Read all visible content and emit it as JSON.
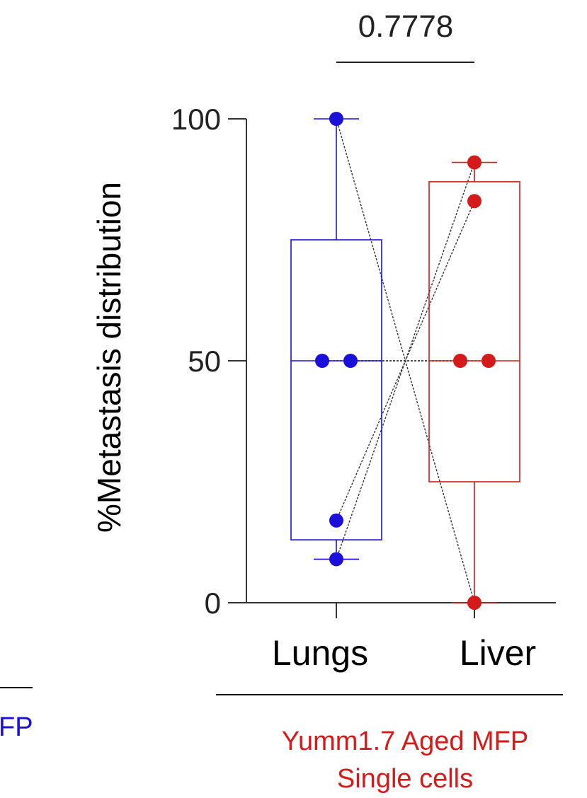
{
  "colors": {
    "lungs": "#1a10d8",
    "liver": "#d41a1a",
    "axis": "#333333",
    "pair_line": "#333333"
  },
  "chart_data": {
    "type": "box",
    "ylabel": "%Metastasis distribution",
    "ylim": [
      0,
      100
    ],
    "yticks": [
      0,
      50,
      100
    ],
    "categories": [
      "Lungs",
      "Liver"
    ],
    "p_value": "0.7778",
    "group_label": {
      "line1": "Yumm1.7 Aged MFP",
      "line2": "Single cells"
    },
    "left_fragment": "FP",
    "series": [
      {
        "category": "Lungs",
        "box": {
          "min": 9,
          "q1": 13,
          "median": 50,
          "q3": 75,
          "max": 100
        },
        "points": [
          100,
          50,
          50,
          17,
          9
        ]
      },
      {
        "category": "Liver",
        "box": {
          "min": 0,
          "q1": 25,
          "median": 50,
          "q3": 87,
          "max": 91
        },
        "points": [
          91,
          83,
          50,
          50,
          0
        ]
      }
    ],
    "pairs": [
      [
        100,
        0
      ],
      [
        50,
        50
      ],
      [
        50,
        50
      ],
      [
        17,
        83
      ],
      [
        9,
        91
      ]
    ]
  }
}
